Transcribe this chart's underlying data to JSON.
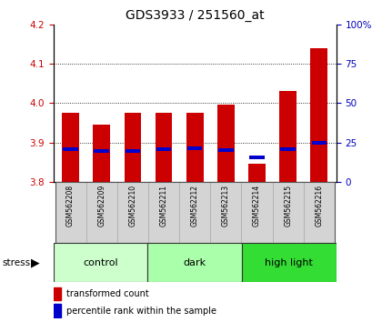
{
  "title": "GDS3933 / 251560_at",
  "samples": [
    "GSM562208",
    "GSM562209",
    "GSM562210",
    "GSM562211",
    "GSM562212",
    "GSM562213",
    "GSM562214",
    "GSM562215",
    "GSM562216"
  ],
  "red_values": [
    3.975,
    3.945,
    3.975,
    3.975,
    3.975,
    3.995,
    3.845,
    4.03,
    4.14
  ],
  "blue_values": [
    3.882,
    3.878,
    3.878,
    3.883,
    3.885,
    3.881,
    3.862,
    3.884,
    3.9
  ],
  "y_min": 3.8,
  "y_max": 4.2,
  "y_ticks": [
    3.8,
    3.9,
    4.0,
    4.1,
    4.2
  ],
  "right_y_ticks_pct": [
    0,
    25,
    50,
    75,
    100
  ],
  "right_y_labels": [
    "0",
    "25",
    "50",
    "75",
    "100%"
  ],
  "groups": [
    {
      "label": "control",
      "start": 0,
      "end": 3,
      "color": "#ccffcc"
    },
    {
      "label": "dark",
      "start": 3,
      "end": 6,
      "color": "#aaffaa"
    },
    {
      "label": "high light",
      "start": 6,
      "end": 9,
      "color": "#33dd33"
    }
  ],
  "stress_label": "stress",
  "bar_bottom": 3.8,
  "bar_width": 0.55,
  "blue_bar_height": 0.009,
  "red_color": "#cc0000",
  "blue_color": "#0000cc",
  "bg_color": "#ffffff",
  "grid_color": "#000000",
  "left_tick_color": "#cc0000",
  "right_tick_color": "#0000bb",
  "title_fontsize": 10,
  "tick_fontsize": 7.5,
  "sample_fontsize": 5.5,
  "group_fontsize": 8,
  "legend_fontsize": 7
}
